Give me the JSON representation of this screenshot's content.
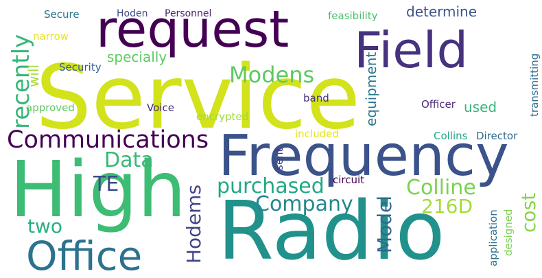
{
  "words": [
    {
      "text": "Service",
      "color": "#d2e21b"
    },
    {
      "text": "Radio",
      "color": "#21918c"
    },
    {
      "text": "High",
      "color": "#3dbc74"
    },
    {
      "text": "Frequency",
      "color": "#3b528b"
    },
    {
      "text": "request",
      "color": "#440154"
    },
    {
      "text": "Field",
      "color": "#46327e"
    },
    {
      "text": "Office",
      "color": "#2c728e"
    },
    {
      "text": "Communications",
      "color": "#440154"
    },
    {
      "text": "recently",
      "color": "#35b779"
    },
    {
      "text": "Modens",
      "color": "#5ec962"
    },
    {
      "text": "purchased",
      "color": "#22a884"
    },
    {
      "text": "Colline",
      "color": "#7ad151"
    },
    {
      "text": "Company",
      "color": "#23888e"
    },
    {
      "text": "Data",
      "color": "#38b977"
    },
    {
      "text": "TE",
      "color": "#3e4989"
    },
    {
      "text": "216D",
      "color": "#a5db36"
    },
    {
      "text": "Hodems",
      "color": "#414487"
    },
    {
      "text": "Model",
      "color": "#31688e"
    },
    {
      "text": "cost",
      "color": "#86d549"
    },
    {
      "text": "two",
      "color": "#29af7f"
    },
    {
      "text": "specially",
      "color": "#5ec962"
    },
    {
      "text": "equipment",
      "color": "#2a788e"
    },
    {
      "text": "used",
      "color": "#35b779"
    },
    {
      "text": "determine",
      "color": "#3b528b"
    },
    {
      "text": "will",
      "color": "#a5db36"
    },
    {
      "text": "approved",
      "color": "#5ec962"
    },
    {
      "text": "Security",
      "color": "#355f8d"
    },
    {
      "text": "Voice",
      "color": "#472d7b"
    },
    {
      "text": "encrypted",
      "color": "#a0da39"
    },
    {
      "text": "Officer",
      "color": "#482878"
    },
    {
      "text": "band",
      "color": "#46337f"
    },
    {
      "text": "transmitting",
      "color": "#2e6e8e"
    },
    {
      "text": "included",
      "color": "#e5e419"
    },
    {
      "text": "Collins",
      "color": "#22a884"
    },
    {
      "text": "Director",
      "color": "#31688e"
    },
    {
      "text": "sent",
      "color": "#443983"
    },
    {
      "text": "circuit",
      "color": "#440154"
    },
    {
      "text": "application",
      "color": "#2c728e"
    },
    {
      "text": "designed",
      "color": "#7ad151"
    },
    {
      "text": "Secure",
      "color": "#2c728e"
    },
    {
      "text": "narrow",
      "color": "#e5e419"
    },
    {
      "text": "Hoden",
      "color": "#3e4a89"
    },
    {
      "text": "Personnel",
      "color": "#482173"
    },
    {
      "text": "feasibility",
      "color": "#4ac16d"
    }
  ]
}
